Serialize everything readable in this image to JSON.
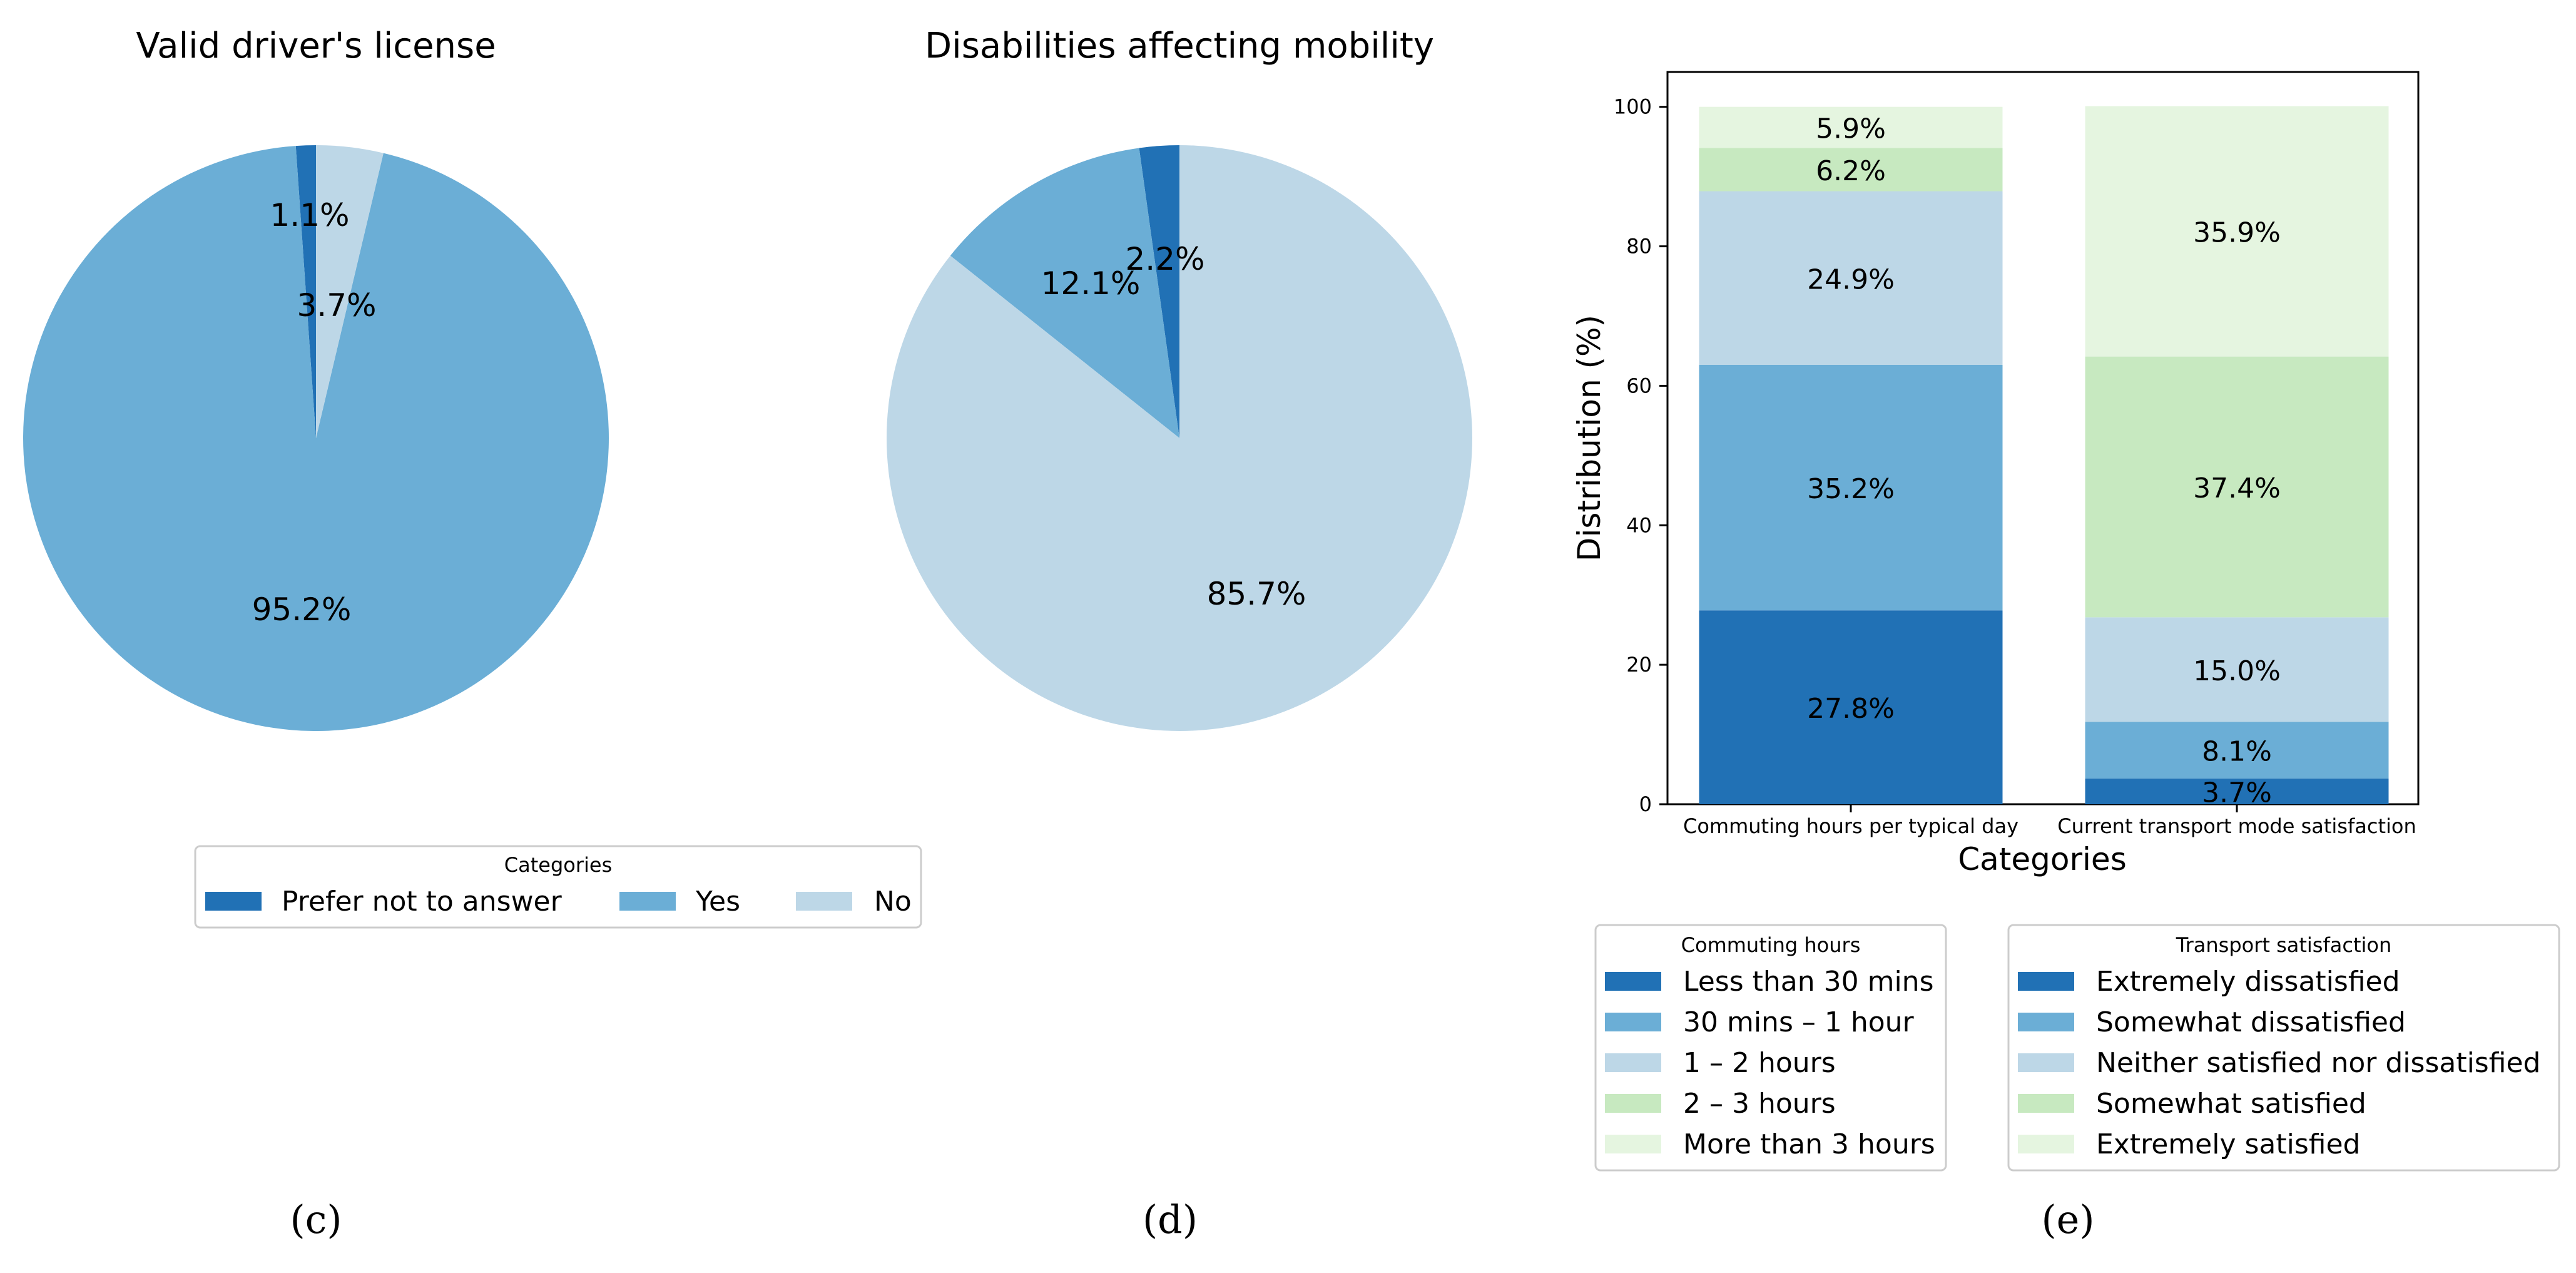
{
  "chart_data": [
    {
      "type": "pie",
      "title": "Valid driver's license",
      "panel_label": "(c)",
      "slices": [
        {
          "label": "Prefer not to answer",
          "value": 1.1,
          "text": "1.1%",
          "color": "#2171b5"
        },
        {
          "label": "Yes",
          "value": 95.2,
          "text": "95.2%",
          "color": "#6baed6"
        },
        {
          "label": "No",
          "value": 3.7,
          "text": "3.7%",
          "color": "#bdd7e7"
        }
      ],
      "legend": {
        "title": "Categories",
        "items": [
          {
            "label": "Prefer not to answer",
            "color": "#2171b5"
          },
          {
            "label": "Yes",
            "color": "#6baed6"
          },
          {
            "label": "No",
            "color": "#bdd7e7"
          }
        ]
      }
    },
    {
      "type": "pie",
      "title": "Disabilities affecting mobility",
      "panel_label": "(d)",
      "slices": [
        {
          "label": "Prefer not to answer",
          "value": 2.2,
          "text": "2.2%",
          "color": "#2171b5"
        },
        {
          "label": "Yes",
          "value": 12.1,
          "text": "12.1%",
          "color": "#6baed6"
        },
        {
          "label": "No",
          "value": 85.7,
          "text": "85.7%",
          "color": "#bdd7e7"
        }
      ]
    },
    {
      "type": "bar",
      "stacked": true,
      "panel_label": "(e)",
      "xlabel": "Categories",
      "ylabel": "Distribution (%)",
      "ylim": [
        0,
        105
      ],
      "yticks": [
        "0",
        "20",
        "40",
        "60",
        "80",
        "100"
      ],
      "categories": [
        "Commuting hours per typical day",
        "Current transport mode satisfaction"
      ],
      "stacks": [
        {
          "category": "Commuting hours per typical day",
          "segments": [
            {
              "name": "Less than 30 mins",
              "value": 27.8,
              "text": "27.8%",
              "color": "#2171b5"
            },
            {
              "name": "30 mins – 1 hour",
              "value": 35.2,
              "text": "35.2%",
              "color": "#6baed6"
            },
            {
              "name": "1 – 2 hours",
              "value": 24.9,
              "text": "24.9%",
              "color": "#bdd7e7"
            },
            {
              "name": "2 – 3 hours",
              "value": 6.2,
              "text": "6.2%",
              "color": "#c7e9c0"
            },
            {
              "name": "More than 3 hours",
              "value": 5.9,
              "text": "5.9%",
              "color": "#e5f5e0"
            }
          ]
        },
        {
          "category": "Current transport mode satisfaction",
          "segments": [
            {
              "name": "Extremely dissatisfied",
              "value": 3.7,
              "text": "3.7%",
              "color": "#2171b5"
            },
            {
              "name": "Somewhat dissatisfied",
              "value": 8.1,
              "text": "8.1%",
              "color": "#6baed6"
            },
            {
              "name": "Neither satisfied nor dissatisfied",
              "value": 15.0,
              "text": "15.0%",
              "color": "#bdd7e7"
            },
            {
              "name": "Somewhat satisfied",
              "value": 37.4,
              "text": "37.4%",
              "color": "#c7e9c0"
            },
            {
              "name": "Extremely satisfied",
              "value": 35.9,
              "text": "35.9%",
              "color": "#e5f5e0"
            }
          ]
        }
      ],
      "legends": [
        {
          "title": "Commuting hours",
          "items": [
            {
              "label": "Less than 30 mins",
              "color": "#2171b5"
            },
            {
              "label": "30 mins – 1 hour",
              "color": "#6baed6"
            },
            {
              "label": "1 – 2 hours",
              "color": "#bdd7e7"
            },
            {
              "label": "2 – 3 hours",
              "color": "#c7e9c0"
            },
            {
              "label": "More than 3 hours",
              "color": "#e5f5e0"
            }
          ]
        },
        {
          "title": "Transport satisfaction",
          "items": [
            {
              "label": "Extremely dissatisfied",
              "color": "#2171b5"
            },
            {
              "label": "Somewhat dissatisfied",
              "color": "#6baed6"
            },
            {
              "label": "Neither satisfied nor dissatisfied",
              "color": "#bdd7e7"
            },
            {
              "label": "Somewhat satisfied",
              "color": "#c7e9c0"
            },
            {
              "label": "Extremely satisfied",
              "color": "#e5f5e0"
            }
          ]
        }
      ]
    }
  ]
}
